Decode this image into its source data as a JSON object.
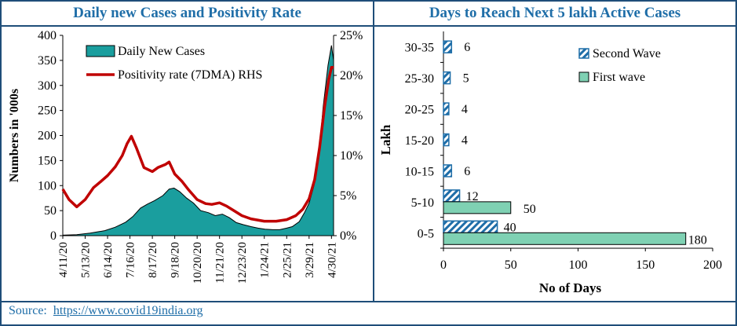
{
  "left_title": "Daily new Cases and Positivity Rate",
  "right_title": "Days to Reach Next 5 lakh Active Cases",
  "source_label": "Source:",
  "source_link": "https://www.covid19india.org",
  "chart_data": [
    {
      "type": "area",
      "title": "Daily new Cases and Positivity Rate",
      "ylabel": "Numbers in '000s",
      "ylim": [
        0,
        400
      ],
      "y_ticks": [
        "0",
        "50",
        "100",
        "150",
        "200",
        "250",
        "300",
        "350",
        "400"
      ],
      "y2lim": [
        0,
        25
      ],
      "y2_ticks": [
        "0%",
        "5%",
        "10%",
        "15%",
        "20%",
        "25%"
      ],
      "x_ticks": [
        "4/11/20",
        "5/13/20",
        "6/14/20",
        "7/16/20",
        "8/17/20",
        "9/18/20",
        "10/20/20",
        "11/21/20",
        "12/23/20",
        "1/24/21",
        "2/25/21",
        "3/29/21",
        "4/30/21"
      ],
      "x_start": "2020-04-11",
      "x_end": "2021-05-03",
      "series": [
        {
          "name": "Daily New Cases",
          "axis": "left",
          "color": "#1a9e9e",
          "points": [
            [
              "2020-04-11",
              1
            ],
            [
              "2020-05-01",
              2
            ],
            [
              "2020-05-20",
              5
            ],
            [
              "2020-06-10",
              10
            ],
            [
              "2020-06-25",
              17
            ],
            [
              "2020-07-10",
              27
            ],
            [
              "2020-07-20",
              38
            ],
            [
              "2020-07-31",
              55
            ],
            [
              "2020-08-10",
              63
            ],
            [
              "2020-08-20",
              70
            ],
            [
              "2020-09-01",
              80
            ],
            [
              "2020-09-10",
              93
            ],
            [
              "2020-09-17",
              95
            ],
            [
              "2020-09-25",
              88
            ],
            [
              "2020-10-05",
              75
            ],
            [
              "2020-10-15",
              65
            ],
            [
              "2020-10-25",
              50
            ],
            [
              "2020-11-05",
              46
            ],
            [
              "2020-11-15",
              40
            ],
            [
              "2020-11-25",
              43
            ],
            [
              "2020-12-05",
              36
            ],
            [
              "2020-12-15",
              26
            ],
            [
              "2020-12-25",
              22
            ],
            [
              "2021-01-05",
              18
            ],
            [
              "2021-01-15",
              15
            ],
            [
              "2021-01-25",
              13
            ],
            [
              "2021-02-05",
              12
            ],
            [
              "2021-02-15",
              12
            ],
            [
              "2021-02-25",
              15
            ],
            [
              "2021-03-05",
              18
            ],
            [
              "2021-03-15",
              28
            ],
            [
              "2021-03-22",
              45
            ],
            [
              "2021-03-29",
              65
            ],
            [
              "2021-04-05",
              100
            ],
            [
              "2021-04-12",
              160
            ],
            [
              "2021-04-18",
              255
            ],
            [
              "2021-04-25",
              340
            ],
            [
              "2021-04-30",
              380
            ],
            [
              "2021-05-03",
              350
            ]
          ]
        },
        {
          "name": "Positivity rate (7DMA) RHS",
          "axis": "right",
          "color": "#c00000",
          "points": [
            [
              "2020-04-11",
              5.8
            ],
            [
              "2020-04-20",
              4.5
            ],
            [
              "2020-05-01",
              3.6
            ],
            [
              "2020-05-13",
              4.5
            ],
            [
              "2020-05-25",
              6.0
            ],
            [
              "2020-06-05",
              6.8
            ],
            [
              "2020-06-14",
              7.5
            ],
            [
              "2020-06-25",
              8.6
            ],
            [
              "2020-07-05",
              10.0
            ],
            [
              "2020-07-12",
              11.5
            ],
            [
              "2020-07-18",
              12.4
            ],
            [
              "2020-07-25",
              11.0
            ],
            [
              "2020-08-05",
              8.5
            ],
            [
              "2020-08-17",
              8.0
            ],
            [
              "2020-08-25",
              8.5
            ],
            [
              "2020-09-05",
              8.9
            ],
            [
              "2020-09-10",
              9.2
            ],
            [
              "2020-09-18",
              7.7
            ],
            [
              "2020-09-28",
              6.8
            ],
            [
              "2020-10-08",
              5.7
            ],
            [
              "2020-10-20",
              4.5
            ],
            [
              "2020-11-01",
              4.0
            ],
            [
              "2020-11-10",
              3.9
            ],
            [
              "2020-11-21",
              4.1
            ],
            [
              "2020-12-01",
              3.7
            ],
            [
              "2020-12-12",
              3.1
            ],
            [
              "2020-12-23",
              2.5
            ],
            [
              "2021-01-05",
              2.1
            ],
            [
              "2021-01-24",
              1.8
            ],
            [
              "2021-02-10",
              1.8
            ],
            [
              "2021-02-25",
              2.0
            ],
            [
              "2021-03-10",
              2.5
            ],
            [
              "2021-03-20",
              3.3
            ],
            [
              "2021-03-29",
              4.6
            ],
            [
              "2021-04-06",
              7.0
            ],
            [
              "2021-04-13",
              11.0
            ],
            [
              "2021-04-20",
              16.0
            ],
            [
              "2021-04-26",
              19.5
            ],
            [
              "2021-04-30",
              21.0
            ],
            [
              "2021-05-03",
              21.0
            ]
          ]
        }
      ]
    },
    {
      "type": "bar",
      "title": "Days to Reach Next 5 lakh Active Cases",
      "orientation": "horizontal",
      "xlabel": "No of Days",
      "ylabel": "Lakh",
      "xlim": [
        0,
        200
      ],
      "x_ticks": [
        "0",
        "50",
        "100",
        "150",
        "200"
      ],
      "categories": [
        "0-5",
        "5-10",
        "10-15",
        "15-20",
        "20-25",
        "25-30",
        "30-35"
      ],
      "series": [
        {
          "name": "Second Wave",
          "color": "#1f6ea8",
          "pattern": "hatched",
          "values": [
            40,
            12,
            6,
            4,
            4,
            5,
            6
          ]
        },
        {
          "name": "First wave",
          "color": "#7fd1b3",
          "values": [
            180,
            50,
            null,
            null,
            null,
            null,
            null
          ]
        }
      ],
      "legend_position": "top-right"
    }
  ]
}
